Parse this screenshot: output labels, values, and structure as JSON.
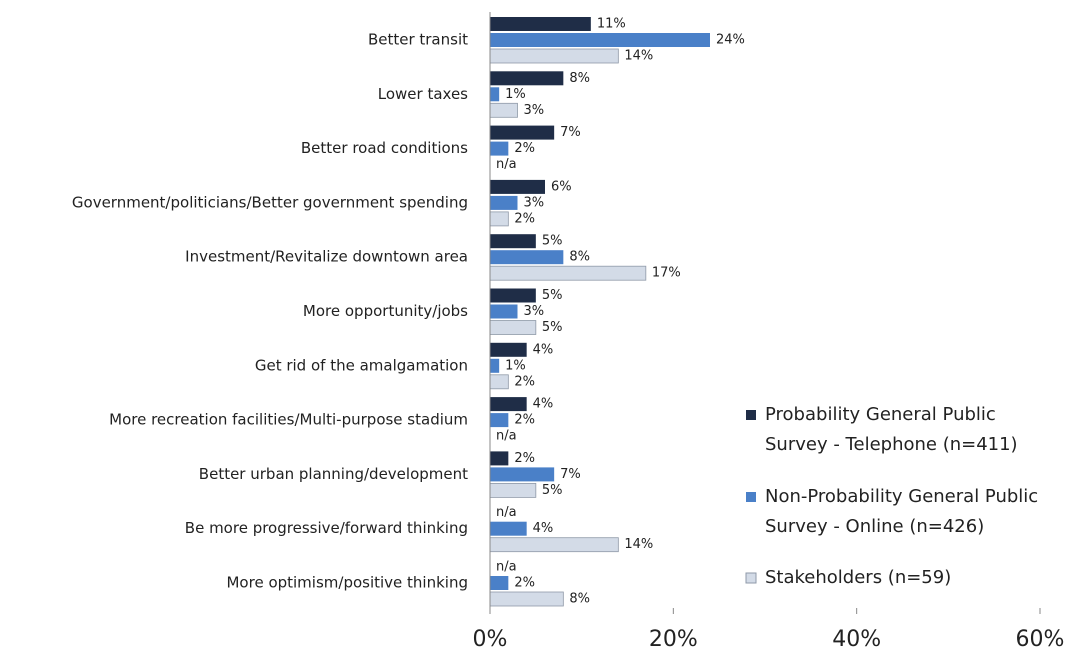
{
  "chart_data": {
    "type": "hbar",
    "categories": [
      "Better transit",
      "Lower taxes",
      "Better road conditions",
      "Government/politicians/Better government spending",
      "Investment/Revitalize downtown area",
      "More opportunity/jobs",
      "Get rid of the amalgamation",
      "More recreation facilities/Multi-purpose stadium",
      "Better urban planning/development",
      "Be more progressive/forward thinking",
      "More optimism/positive thinking"
    ],
    "series": [
      {
        "name": "Probability General Public Survey - Telephone (n=411)",
        "color": "#1f2d47",
        "values": [
          11,
          8,
          7,
          6,
          5,
          5,
          4,
          4,
          2,
          null,
          null
        ],
        "value_labels": [
          "11%",
          "8%",
          "7%",
          "6%",
          "5%",
          "5%",
          "4%",
          "4%",
          "2%",
          "n/a",
          "n/a"
        ]
      },
      {
        "name": "Non-Probability General Public Survey - Online (n=426)",
        "color": "#4a80c8",
        "values": [
          24,
          1,
          2,
          3,
          8,
          3,
          1,
          2,
          7,
          4,
          2
        ],
        "value_labels": [
          "24%",
          "1%",
          "2%",
          "3%",
          "8%",
          "3%",
          "1%",
          "2%",
          "7%",
          "4%",
          "2%"
        ]
      },
      {
        "name": "Stakeholders (n=59)",
        "color": "#d3dbe7",
        "values": [
          14,
          3,
          null,
          2,
          17,
          5,
          2,
          null,
          5,
          14,
          8
        ],
        "value_labels": [
          "14%",
          "3%",
          "n/a",
          "2%",
          "17%",
          "5%",
          "2%",
          "n/a",
          "5%",
          "14%",
          "8%"
        ]
      }
    ],
    "xlim": [
      0,
      60
    ],
    "xticks": [
      {
        "value": 0,
        "label": "0%"
      },
      {
        "value": 20,
        "label": "20%"
      },
      {
        "value": 40,
        "label": "40%"
      },
      {
        "value": 60,
        "label": "60%"
      }
    ],
    "legend": "right"
  }
}
